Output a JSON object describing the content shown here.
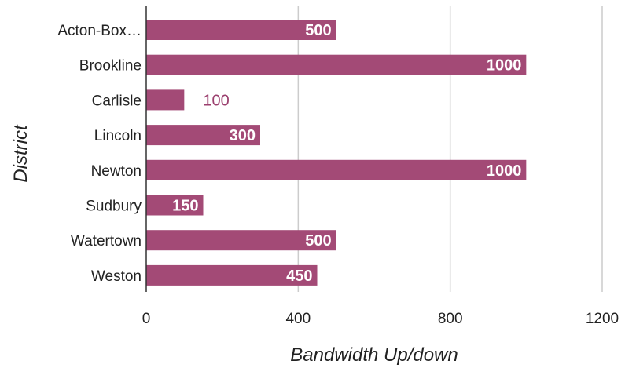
{
  "chart_data": {
    "type": "bar",
    "orientation": "horizontal",
    "categories": [
      "Acton-Box…",
      "Brookline",
      "Carlisle",
      "Lincoln",
      "Newton",
      "Sudbury",
      "Watertown",
      "Weston"
    ],
    "values": [
      500,
      1000,
      100,
      300,
      1000,
      150,
      500,
      450
    ],
    "data_labels": [
      "500",
      "1000",
      "100",
      "300",
      "1000",
      "150",
      "500",
      "450"
    ],
    "xlabel": "Bandwidth Up/down",
    "ylabel": "District",
    "xlim": [
      0,
      1200
    ],
    "xticks": [
      0,
      400,
      800,
      1200
    ],
    "xtick_labels": [
      "0",
      "400",
      "800",
      "1200"
    ],
    "grid": true,
    "bar_color": "#a34a76",
    "outside_label_color": "#9b3f6e"
  }
}
